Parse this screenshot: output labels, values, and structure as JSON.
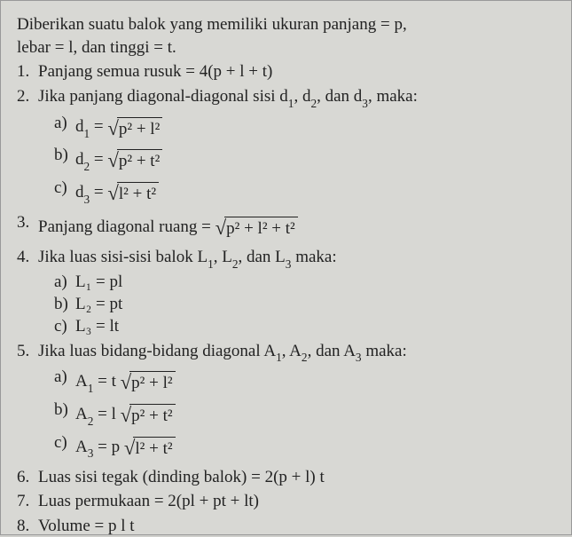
{
  "intro_line1": "Diberikan suatu balok yang memiliki ukuran panjang = p,",
  "intro_line2": "lebar = l, dan tinggi = t.",
  "items": {
    "n1": {
      "num": "1.",
      "text": "Panjang semua rusuk = 4(p + l + t)"
    },
    "n2": {
      "num": "2.",
      "text": "Jika panjang diagonal-diagonal sisi d",
      "text2": ", d",
      "text3": ", dan d",
      "text4": ", maka:",
      "sub": {
        "a": {
          "lett": "a)",
          "lhs": "d",
          "subidx": "1",
          "eq": " = ",
          "rad": "p² + l²"
        },
        "b": {
          "lett": "b)",
          "lhs": "d",
          "subidx": "2",
          "eq": " = ",
          "rad": "p² + t²"
        },
        "c": {
          "lett": "c)",
          "lhs": "d",
          "subidx": "3",
          "eq": " = ",
          "rad": "l² + t²"
        }
      }
    },
    "n3": {
      "num": "3.",
      "text": "Panjang diagonal ruang = ",
      "rad": "p² + l² + t²"
    },
    "n4": {
      "num": "4.",
      "text": "Jika luas sisi-sisi balok L",
      "text2": ", L",
      "text3": ", dan L",
      "text4": " maka:",
      "sub": {
        "a": {
          "lett": "a)",
          "eq": "L₁ = pl"
        },
        "b": {
          "lett": "b)",
          "eq": "L₂ = pt"
        },
        "c": {
          "lett": "c)",
          "eq": "L₃ = lt"
        }
      }
    },
    "n5": {
      "num": "5.",
      "text": "Jika luas bidang-bidang diagonal A",
      "text2": ", A",
      "text3": ", dan A",
      "text4": " maka:",
      "sub": {
        "a": {
          "lett": "a)",
          "lhs": "A",
          "subidx": "1",
          "eq": " = t ",
          "rad": "p² + l²"
        },
        "b": {
          "lett": "b)",
          "lhs": "A",
          "subidx": "2",
          "eq": " = l ",
          "rad": "p² + t²"
        },
        "c": {
          "lett": "c)",
          "lhs": "A",
          "subidx": "3",
          "eq": " = p ",
          "rad": "l² + t²"
        }
      }
    },
    "n6": {
      "num": "6.",
      "text": "Luas sisi tegak (dinding balok) = 2(p + l) t"
    },
    "n7": {
      "num": "7.",
      "text": "Luas permukaan = 2(pl + pt + lt)"
    },
    "n8": {
      "num": "8.",
      "text": "Volume = p l t"
    }
  },
  "idx": {
    "one": "1",
    "two": "2",
    "three": "3"
  }
}
